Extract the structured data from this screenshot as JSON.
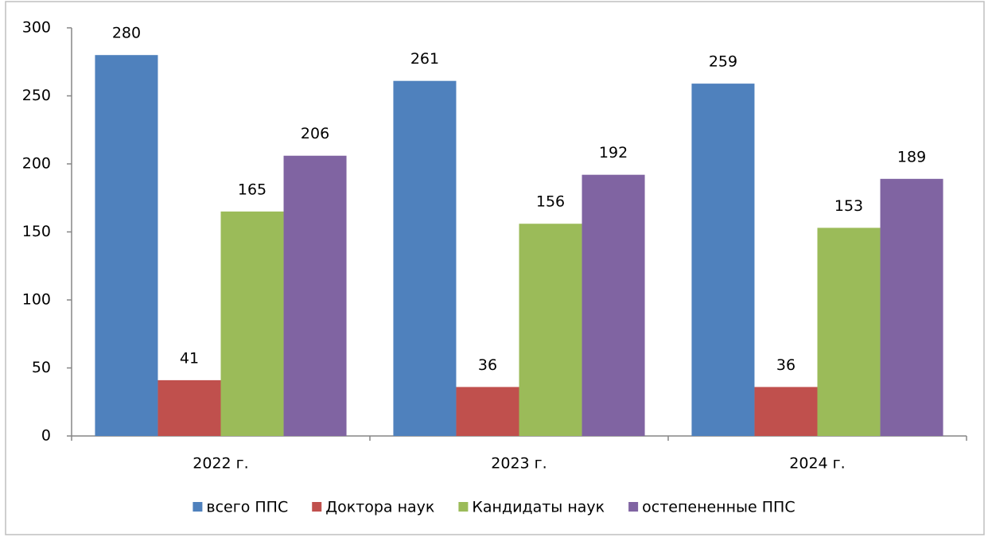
{
  "chart_data": {
    "type": "bar",
    "categories": [
      "2022 г.",
      "2023 г.",
      "2024 г."
    ],
    "series": [
      {
        "name": "всего ППС",
        "color": "#4f81bd",
        "values": [
          280,
          261,
          259
        ]
      },
      {
        "name": "Доктора наук",
        "color": "#c0504d",
        "values": [
          41,
          36,
          36
        ]
      },
      {
        "name": "Кандидаты наук",
        "color": "#9bbb59",
        "values": [
          165,
          156,
          153
        ]
      },
      {
        "name": "остепененные ППС",
        "color": "#8064a2",
        "values": [
          206,
          192,
          189
        ]
      }
    ],
    "ylim": [
      0,
      300
    ],
    "yticks": [
      0,
      50,
      100,
      150,
      200,
      250,
      300
    ],
    "grid": false,
    "legend": "bottom",
    "data_labels": true
  }
}
